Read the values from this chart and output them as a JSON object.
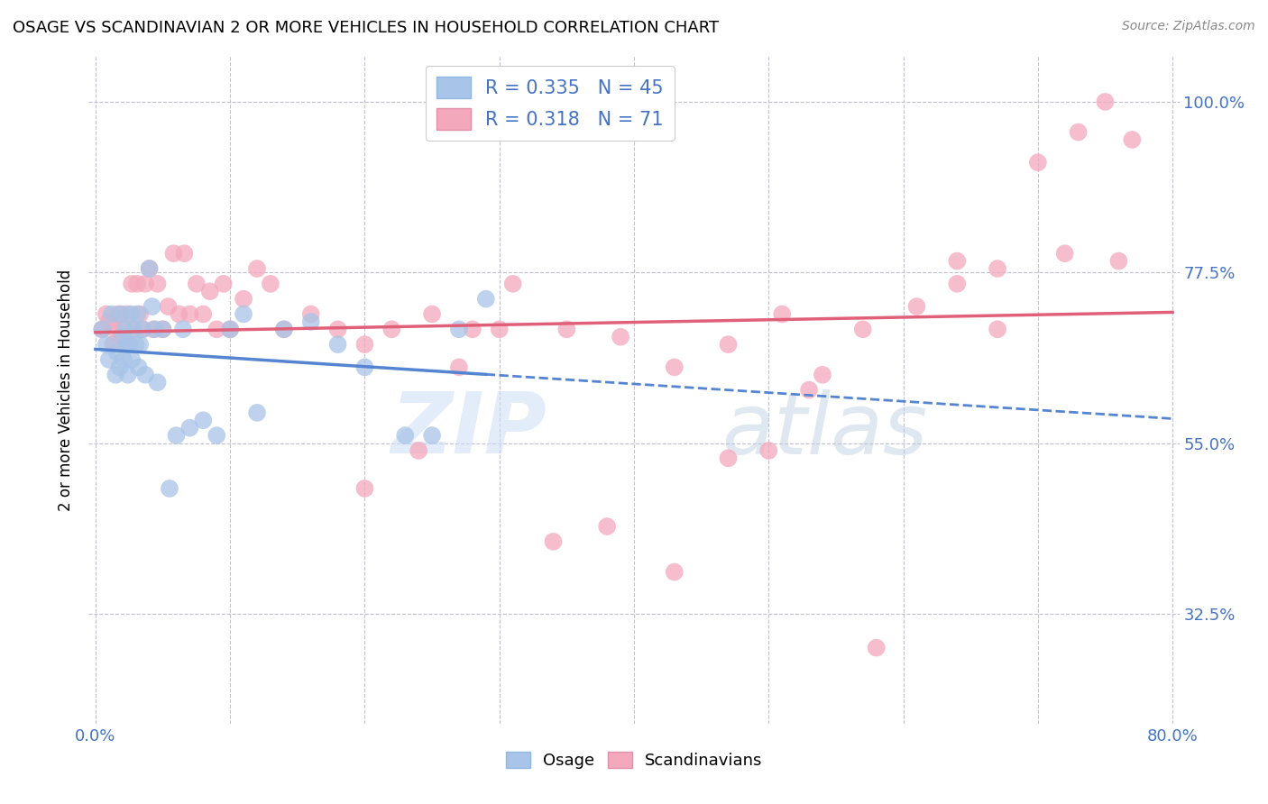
{
  "title": "OSAGE VS SCANDINAVIAN 2 OR MORE VEHICLES IN HOUSEHOLD CORRELATION CHART",
  "source": "Source: ZipAtlas.com",
  "ylabel": "2 or more Vehicles in Household",
  "xlim": [
    -0.005,
    0.805
  ],
  "ylim": [
    0.18,
    1.06
  ],
  "ytick_positions": [
    0.325,
    0.55,
    0.775,
    1.0
  ],
  "ytick_labels": [
    "32.5%",
    "55.0%",
    "77.5%",
    "100.0%"
  ],
  "legend_osage_R": "0.335",
  "legend_osage_N": "45",
  "legend_scand_R": "0.318",
  "legend_scand_N": "71",
  "osage_color": "#a8c4e8",
  "scand_color": "#f4a8bc",
  "osage_line_color": "#5585d0",
  "scand_line_color": "#e0607a",
  "osage_x": [
    0.005,
    0.008,
    0.01,
    0.012,
    0.015,
    0.016,
    0.018,
    0.019,
    0.02,
    0.021,
    0.022,
    0.023,
    0.024,
    0.025,
    0.026,
    0.027,
    0.028,
    0.03,
    0.031,
    0.032,
    0.033,
    0.035,
    0.037,
    0.04,
    0.042,
    0.044,
    0.046,
    0.05,
    0.055,
    0.06,
    0.065,
    0.07,
    0.08,
    0.09,
    0.1,
    0.11,
    0.12,
    0.14,
    0.16,
    0.18,
    0.2,
    0.23,
    0.25,
    0.27,
    0.29
  ],
  "osage_y": [
    0.7,
    0.68,
    0.66,
    0.72,
    0.64,
    0.67,
    0.65,
    0.72,
    0.69,
    0.66,
    0.7,
    0.68,
    0.64,
    0.68,
    0.72,
    0.66,
    0.7,
    0.68,
    0.72,
    0.65,
    0.68,
    0.7,
    0.64,
    0.78,
    0.73,
    0.7,
    0.63,
    0.7,
    0.49,
    0.56,
    0.7,
    0.57,
    0.58,
    0.56,
    0.7,
    0.72,
    0.59,
    0.7,
    0.71,
    0.68,
    0.65,
    0.56,
    0.56,
    0.7,
    0.74
  ],
  "scand_x": [
    0.005,
    0.008,
    0.01,
    0.013,
    0.015,
    0.017,
    0.019,
    0.021,
    0.023,
    0.025,
    0.027,
    0.029,
    0.031,
    0.033,
    0.035,
    0.037,
    0.04,
    0.043,
    0.046,
    0.05,
    0.054,
    0.058,
    0.062,
    0.066,
    0.07,
    0.075,
    0.08,
    0.085,
    0.09,
    0.095,
    0.1,
    0.11,
    0.12,
    0.13,
    0.14,
    0.16,
    0.18,
    0.2,
    0.22,
    0.25,
    0.28,
    0.31,
    0.35,
    0.39,
    0.43,
    0.47,
    0.51,
    0.54,
    0.57,
    0.61,
    0.64,
    0.67,
    0.7,
    0.73,
    0.75,
    0.77,
    0.2,
    0.24,
    0.27,
    0.3,
    0.34,
    0.38,
    0.43,
    0.47,
    0.5,
    0.53,
    0.58,
    0.64,
    0.67,
    0.72,
    0.76
  ],
  "scand_y": [
    0.7,
    0.72,
    0.71,
    0.68,
    0.7,
    0.72,
    0.69,
    0.7,
    0.72,
    0.68,
    0.76,
    0.7,
    0.76,
    0.72,
    0.7,
    0.76,
    0.78,
    0.7,
    0.76,
    0.7,
    0.73,
    0.8,
    0.72,
    0.8,
    0.72,
    0.76,
    0.72,
    0.75,
    0.7,
    0.76,
    0.7,
    0.74,
    0.78,
    0.76,
    0.7,
    0.72,
    0.7,
    0.68,
    0.7,
    0.72,
    0.7,
    0.76,
    0.7,
    0.69,
    0.65,
    0.68,
    0.72,
    0.64,
    0.7,
    0.73,
    0.76,
    0.7,
    0.92,
    0.96,
    1.0,
    0.95,
    0.49,
    0.54,
    0.65,
    0.7,
    0.42,
    0.44,
    0.38,
    0.53,
    0.54,
    0.62,
    0.28,
    0.79,
    0.78,
    0.8,
    0.79
  ]
}
